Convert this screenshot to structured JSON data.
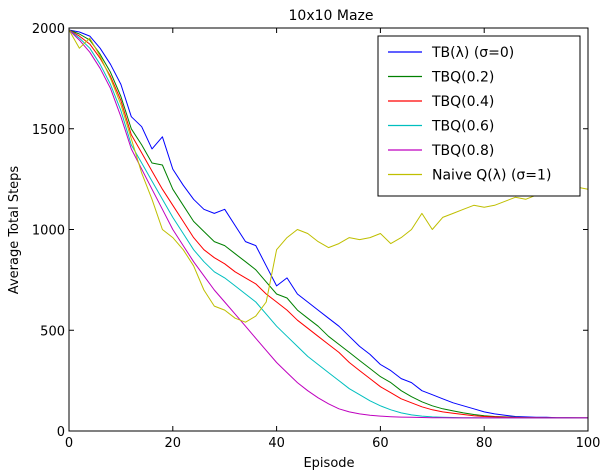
{
  "chart_data": {
    "type": "line",
    "title": "10x10 Maze",
    "xlabel": "Episode",
    "ylabel": "Average Total Steps",
    "xlim": [
      0,
      100
    ],
    "ylim": [
      0,
      2000
    ],
    "xticks": [
      0,
      20,
      40,
      60,
      80,
      100
    ],
    "yticks": [
      0,
      500,
      1000,
      1500,
      2000
    ],
    "legend_position": "top-right",
    "grid": false,
    "series": [
      {
        "name": "TB(λ) (σ=0)",
        "color": "#0000ff",
        "x": [
          0,
          2,
          4,
          6,
          8,
          10,
          12,
          14,
          16,
          18,
          20,
          22,
          24,
          26,
          28,
          30,
          32,
          34,
          36,
          38,
          40,
          42,
          44,
          46,
          48,
          50,
          52,
          54,
          56,
          58,
          60,
          62,
          64,
          66,
          68,
          70,
          72,
          74,
          76,
          78,
          80,
          82,
          84,
          86,
          88,
          90,
          92,
          94,
          96,
          98,
          100
        ],
        "y": [
          1990,
          1980,
          1960,
          1900,
          1820,
          1720,
          1560,
          1510,
          1400,
          1460,
          1300,
          1220,
          1150,
          1100,
          1080,
          1100,
          1020,
          940,
          920,
          820,
          720,
          760,
          680,
          640,
          600,
          560,
          520,
          470,
          420,
          380,
          330,
          300,
          260,
          240,
          200,
          180,
          160,
          140,
          125,
          110,
          95,
          85,
          78,
          72,
          70,
          68,
          68,
          66,
          66,
          65,
          65
        ]
      },
      {
        "name": "TBQ(0.2)",
        "color": "#008000",
        "x": [
          0,
          2,
          4,
          6,
          8,
          10,
          12,
          14,
          16,
          18,
          20,
          22,
          24,
          26,
          28,
          30,
          32,
          34,
          36,
          38,
          40,
          42,
          44,
          46,
          48,
          50,
          52,
          54,
          56,
          58,
          60,
          62,
          64,
          66,
          68,
          70,
          72,
          74,
          76,
          78,
          80,
          82,
          84,
          86,
          88,
          90,
          92,
          94,
          96,
          98,
          100
        ],
        "y": [
          1990,
          1970,
          1940,
          1870,
          1780,
          1660,
          1500,
          1420,
          1330,
          1320,
          1200,
          1120,
          1040,
          990,
          940,
          920,
          880,
          840,
          800,
          740,
          680,
          660,
          600,
          560,
          520,
          470,
          430,
          390,
          350,
          310,
          270,
          240,
          200,
          170,
          145,
          125,
          110,
          100,
          90,
          82,
          76,
          72,
          70,
          68,
          67,
          66,
          66,
          65,
          65,
          65,
          65
        ]
      },
      {
        "name": "TBQ(0.4)",
        "color": "#ff0000",
        "x": [
          0,
          2,
          4,
          6,
          8,
          10,
          12,
          14,
          16,
          18,
          20,
          22,
          24,
          26,
          28,
          30,
          32,
          34,
          36,
          38,
          40,
          42,
          44,
          46,
          48,
          50,
          52,
          54,
          56,
          58,
          60,
          62,
          64,
          66,
          68,
          70,
          72,
          74,
          76,
          78,
          80,
          82,
          84,
          86,
          88,
          90,
          92,
          94,
          96,
          98,
          100
        ],
        "y": [
          1990,
          1960,
          1920,
          1850,
          1760,
          1640,
          1470,
          1380,
          1290,
          1200,
          1120,
          1040,
          960,
          900,
          860,
          830,
          790,
          760,
          730,
          680,
          640,
          600,
          550,
          510,
          470,
          430,
          390,
          340,
          300,
          260,
          220,
          190,
          160,
          140,
          120,
          105,
          95,
          88,
          82,
          76,
          72,
          70,
          68,
          67,
          66,
          66,
          65,
          65,
          65,
          65,
          65
        ]
      },
      {
        "name": "TBQ(0.6)",
        "color": "#00bfbf",
        "x": [
          0,
          2,
          4,
          6,
          8,
          10,
          12,
          14,
          16,
          18,
          20,
          22,
          24,
          26,
          28,
          30,
          32,
          34,
          36,
          38,
          40,
          42,
          44,
          46,
          48,
          50,
          52,
          54,
          56,
          58,
          60,
          62,
          64,
          66,
          68,
          70,
          72,
          74,
          76,
          78,
          80,
          82,
          84,
          86,
          88,
          90,
          92,
          94,
          96,
          98,
          100
        ],
        "y": [
          1990,
          1950,
          1900,
          1820,
          1720,
          1590,
          1420,
          1330,
          1240,
          1150,
          1060,
          980,
          900,
          840,
          790,
          760,
          720,
          680,
          640,
          580,
          520,
          470,
          420,
          370,
          330,
          290,
          250,
          210,
          180,
          150,
          125,
          105,
          90,
          80,
          74,
          70,
          68,
          67,
          66,
          66,
          65,
          65,
          65,
          65,
          65,
          65,
          65,
          65,
          65,
          65,
          65
        ]
      },
      {
        "name": "TBQ(0.8)",
        "color": "#bf00bf",
        "x": [
          0,
          2,
          4,
          6,
          8,
          10,
          12,
          14,
          16,
          18,
          20,
          22,
          24,
          26,
          28,
          30,
          32,
          34,
          36,
          38,
          40,
          42,
          44,
          46,
          48,
          50,
          52,
          54,
          56,
          58,
          60,
          62,
          64,
          66,
          68,
          70,
          72,
          74,
          76,
          78,
          80,
          82,
          84,
          86,
          88,
          90,
          92,
          94,
          96,
          98,
          100
        ],
        "y": [
          1990,
          1940,
          1880,
          1800,
          1700,
          1560,
          1400,
          1300,
          1200,
          1100,
          1000,
          920,
          840,
          770,
          700,
          640,
          580,
          520,
          460,
          400,
          340,
          290,
          240,
          200,
          165,
          135,
          110,
          95,
          85,
          78,
          74,
          71,
          69,
          68,
          67,
          66,
          66,
          65,
          65,
          65,
          65,
          65,
          65,
          65,
          65,
          65,
          65,
          65,
          65,
          65,
          65
        ]
      },
      {
        "name": "Naive Q(λ) (σ=1)",
        "color": "#bfbf00",
        "x": [
          0,
          2,
          4,
          6,
          8,
          10,
          12,
          14,
          16,
          18,
          20,
          22,
          24,
          26,
          28,
          30,
          32,
          34,
          36,
          38,
          40,
          42,
          44,
          46,
          48,
          50,
          52,
          54,
          56,
          58,
          60,
          62,
          64,
          66,
          68,
          70,
          72,
          74,
          76,
          78,
          80,
          82,
          84,
          86,
          88,
          90,
          92,
          94,
          96,
          98,
          100
        ],
        "y": [
          1990,
          1900,
          1950,
          1860,
          1750,
          1620,
          1450,
          1280,
          1150,
          1000,
          960,
          900,
          820,
          700,
          620,
          600,
          560,
          540,
          570,
          640,
          900,
          960,
          1000,
          980,
          940,
          910,
          930,
          960,
          950,
          960,
          980,
          930,
          960,
          1000,
          1080,
          1000,
          1060,
          1080,
          1100,
          1120,
          1110,
          1120,
          1140,
          1160,
          1150,
          1170,
          1180,
          1190,
          1200,
          1210,
          1200
        ]
      }
    ]
  }
}
